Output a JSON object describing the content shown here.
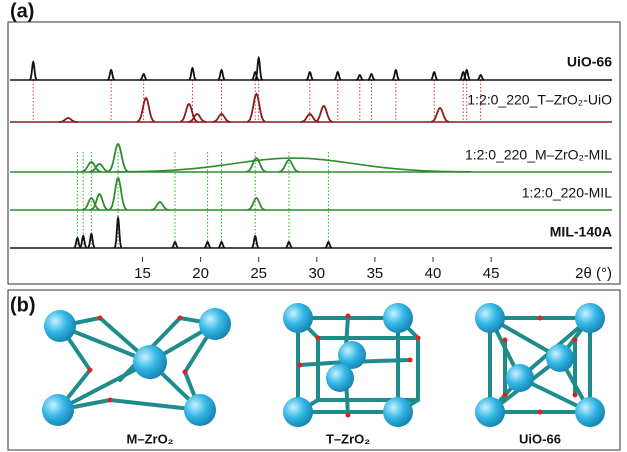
{
  "chart_data": {
    "type": "xrd-stack",
    "panel_label": "(a)",
    "x_label": "2θ (°)",
    "xlim": [
      3.6,
      55.4
    ],
    "xticks": [
      15,
      20,
      25,
      30,
      35,
      40,
      45
    ],
    "series": [
      {
        "name": "UiO-66",
        "color": "#111111",
        "width": 0.12,
        "peaks_x": [
          5.6,
          12.3,
          15.1,
          19.3,
          21.8,
          24.7,
          25.0,
          29.4,
          31.8,
          33.7,
          34.7,
          36.8,
          40.1,
          42.6,
          42.9,
          44.1
        ],
        "peaks_height": [
          18,
          10,
          6,
          12,
          10,
          8,
          22,
          8,
          8,
          5,
          6,
          10,
          8,
          8,
          10,
          5
        ]
      },
      {
        "name": "1:2:0_220_T–ZrO₂-UiO",
        "color": "#8b1a1a",
        "width": 0.3,
        "peaks_x": [
          8.6,
          15.3,
          19.0,
          19.7,
          21.8,
          24.8,
          29.4,
          30.6,
          40.6
        ],
        "peaks_height": [
          4,
          24,
          18,
          8,
          8,
          28,
          8,
          16,
          14
        ]
      },
      {
        "name": "1:2:0_220_M–ZrO₂-MIL",
        "color": "#2e8b2e",
        "width": 0.35,
        "peaks_x": [
          10.6,
          11.3,
          12.9,
          24.8,
          27.6
        ],
        "peaks_height": [
          10,
          8,
          28,
          14,
          12
        ],
        "halo": {
          "x": 28,
          "height": 14,
          "width": 12
        }
      },
      {
        "name": "1:2:0_220-MIL",
        "color": "#2e8b2e",
        "width": 0.3,
        "peaks_x": [
          10.6,
          11.3,
          12.9,
          16.5,
          24.8
        ],
        "peaks_height": [
          12,
          16,
          32,
          8,
          12
        ]
      },
      {
        "name": "MIL-140A",
        "color": "#111111",
        "width": 0.12,
        "peaks_x": [
          9.4,
          9.9,
          10.6,
          12.9,
          17.8,
          20.6,
          21.8,
          24.7,
          27.6,
          31.0
        ],
        "peaks_height": [
          10,
          12,
          14,
          30,
          6,
          6,
          6,
          12,
          6,
          6
        ]
      }
    ]
  },
  "structures": {
    "panel_label": "(b)",
    "labels": [
      "M–ZrO₂",
      "T–ZrO₂",
      "UiO-66"
    ]
  }
}
